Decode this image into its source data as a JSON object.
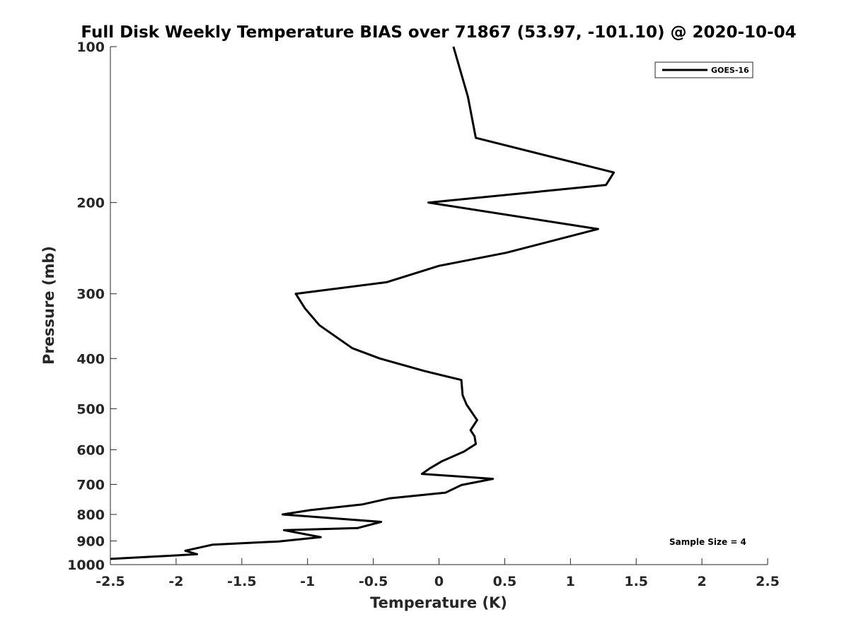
{
  "chart_data": {
    "type": "line",
    "title": "Full Disk Weekly Temperature BIAS over 71867 (53.97, -101.10) @ 2020-10-04",
    "xlabel": "Temperature (K)",
    "ylabel": "Pressure (mb)",
    "xlim": [
      -2.5,
      2.5
    ],
    "ylim": [
      100,
      1000
    ],
    "y_scale": "log",
    "y_reversed": true,
    "x_ticks": [
      "-2.5",
      "-2",
      "-1.5",
      "-1",
      "-0.5",
      "0",
      "0.5",
      "1",
      "1.5",
      "2",
      "2.5"
    ],
    "y_ticks": [
      "100",
      "200",
      "300",
      "400",
      "500",
      "600",
      "700",
      "800",
      "900",
      "1000"
    ],
    "legend_position": "top-right",
    "annotation": "Sample Size = 4",
    "series": [
      {
        "name": "GOES-16",
        "color": "#000000",
        "points": [
          [
            0.11,
            100
          ],
          [
            0.22,
            125
          ],
          [
            0.28,
            150
          ],
          [
            1.33,
            175
          ],
          [
            1.27,
            185
          ],
          [
            -0.08,
            200
          ],
          [
            1.21,
            225
          ],
          [
            0.51,
            250
          ],
          [
            0.0,
            265
          ],
          [
            -0.4,
            285
          ],
          [
            -1.09,
            300
          ],
          [
            -1.02,
            320
          ],
          [
            -0.91,
            345
          ],
          [
            -0.66,
            382
          ],
          [
            -0.45,
            400
          ],
          [
            -0.11,
            423
          ],
          [
            0.17,
            440
          ],
          [
            0.18,
            471
          ],
          [
            0.21,
            491
          ],
          [
            0.29,
            526
          ],
          [
            0.24,
            550
          ],
          [
            0.27,
            565
          ],
          [
            0.28,
            585
          ],
          [
            0.19,
            605
          ],
          [
            0.02,
            632
          ],
          [
            -0.07,
            652
          ],
          [
            -0.13,
            668
          ],
          [
            0.41,
            683
          ],
          [
            0.17,
            702
          ],
          [
            0.05,
            726
          ],
          [
            -0.38,
            745
          ],
          [
            -0.58,
            765
          ],
          [
            -0.98,
            785
          ],
          [
            -1.19,
            800
          ],
          [
            -0.44,
            827
          ],
          [
            -0.62,
            850
          ],
          [
            -1.18,
            858
          ],
          [
            -0.9,
            885
          ],
          [
            -1.22,
            902
          ],
          [
            -1.72,
            915
          ],
          [
            -1.93,
            940
          ],
          [
            -1.84,
            955
          ],
          [
            -2.5,
            975
          ]
        ]
      }
    ]
  }
}
